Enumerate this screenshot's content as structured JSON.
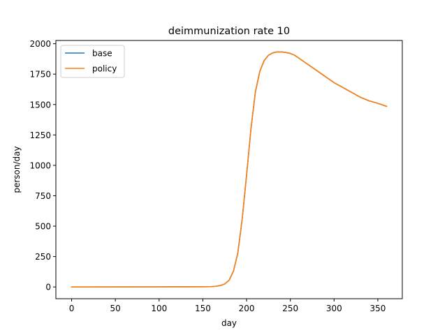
{
  "chart_data": {
    "type": "line",
    "title": "deimmunization rate 10",
    "xlabel": "day",
    "ylabel": "person/day",
    "xlim": [
      -18,
      378
    ],
    "ylim": [
      -96.5,
      2026.5
    ],
    "xticks": [
      0,
      50,
      100,
      150,
      200,
      250,
      300,
      350
    ],
    "yticks": [
      0,
      250,
      500,
      750,
      1000,
      1250,
      1500,
      1750,
      2000
    ],
    "grid": false,
    "legend_position": "upper-left",
    "x": [
      0,
      100,
      150,
      160,
      165,
      170,
      175,
      180,
      185,
      190,
      195,
      200,
      205,
      210,
      215,
      220,
      225,
      230,
      235,
      240,
      245,
      250,
      255,
      260,
      270,
      280,
      290,
      300,
      310,
      320,
      330,
      340,
      350,
      360
    ],
    "series": [
      {
        "name": "base",
        "color": "#1f77b4",
        "values": [
          0,
          1,
          2,
          3,
          6,
          12,
          25,
          55,
          130,
          280,
          560,
          920,
          1300,
          1600,
          1770,
          1860,
          1905,
          1925,
          1933,
          1932,
          1928,
          1920,
          1905,
          1880,
          1830,
          1780,
          1730,
          1680,
          1640,
          1600,
          1560,
          1530,
          1510,
          1485
        ]
      },
      {
        "name": "policy",
        "color": "#ff7f0e",
        "values": [
          0,
          1,
          2,
          3,
          6,
          12,
          25,
          55,
          130,
          280,
          560,
          920,
          1300,
          1600,
          1770,
          1860,
          1905,
          1925,
          1933,
          1932,
          1928,
          1920,
          1905,
          1880,
          1830,
          1780,
          1730,
          1680,
          1640,
          1600,
          1560,
          1530,
          1510,
          1485
        ]
      }
    ]
  }
}
